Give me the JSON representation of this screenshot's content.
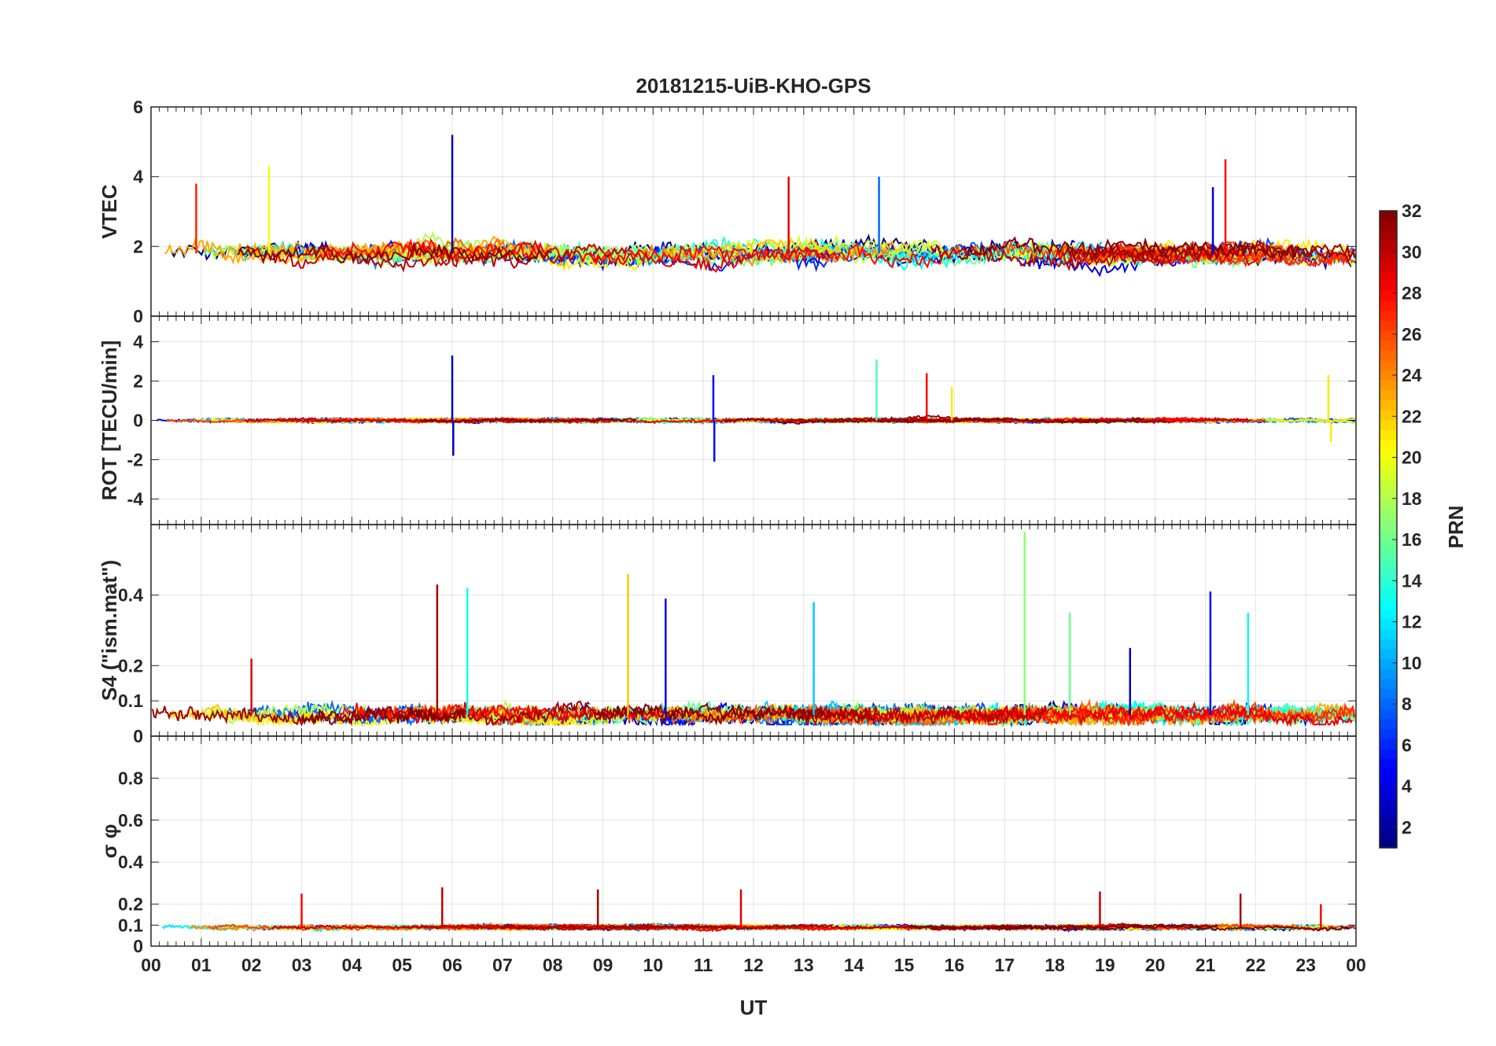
{
  "chart_data": {
    "type": "line",
    "title": "20181215-UiB-KHO-GPS",
    "xlabel": "UT",
    "x_tick_labels": [
      "00",
      "01",
      "02",
      "03",
      "04",
      "05",
      "06",
      "07",
      "08",
      "09",
      "10",
      "11",
      "12",
      "13",
      "14",
      "15",
      "16",
      "17",
      "18",
      "19",
      "20",
      "21",
      "22",
      "23",
      "00"
    ],
    "xlim": [
      0,
      24
    ],
    "grid": true,
    "panels": [
      {
        "id": "vtec",
        "ylabel": "VTEC",
        "ylim": [
          0,
          6
        ],
        "y_ticks": [
          0,
          2,
          4,
          6
        ],
        "y_tick_labels": [
          "0",
          "2",
          "4",
          "6"
        ],
        "baseline": 1.8,
        "noise": 0.35,
        "events": [
          {
            "prn": 3,
            "t": 6.0,
            "value": 5.2
          },
          {
            "prn": 4,
            "t": 21.15,
            "value": 3.7
          },
          {
            "prn": 28,
            "t": 21.4,
            "value": 4.5
          },
          {
            "prn": 29,
            "t": 12.7,
            "value": 4.0
          },
          {
            "prn": 8,
            "t": 14.5,
            "value": 4.0
          },
          {
            "prn": 20,
            "t": 2.35,
            "value": 4.3
          },
          {
            "prn": 27,
            "t": 0.9,
            "value": 3.8
          }
        ]
      },
      {
        "id": "rot",
        "ylabel": "ROT [TECU/min]",
        "ylim": [
          -5.3,
          5.3
        ],
        "y_ticks": [
          -4,
          -2,
          0,
          2,
          4
        ],
        "y_tick_labels": [
          "-4",
          "-2",
          "0",
          "2",
          "4"
        ],
        "baseline": 0.0,
        "noise": 0.12,
        "events": [
          {
            "prn": 3,
            "t": 6.0,
            "value": 3.3
          },
          {
            "prn": 3,
            "t": 6.02,
            "value": -1.8
          },
          {
            "prn": 5,
            "t": 11.2,
            "value": 2.3
          },
          {
            "prn": 5,
            "t": 11.22,
            "value": -2.1
          },
          {
            "prn": 15,
            "t": 14.45,
            "value": 3.1
          },
          {
            "prn": 28,
            "t": 15.45,
            "value": 2.4
          },
          {
            "prn": 21,
            "t": 15.95,
            "value": 1.7
          },
          {
            "prn": 21,
            "t": 23.45,
            "value": 2.3
          },
          {
            "prn": 21,
            "t": 23.5,
            "value": -1.1
          }
        ]
      },
      {
        "id": "s4",
        "ylabel": "S4 (\"ism.mat\")",
        "ylim": [
          0,
          0.6
        ],
        "y_ticks": [
          0,
          0.1,
          0.2,
          0.4
        ],
        "y_tick_labels": [
          "0",
          "0.1",
          "0.2",
          "0.4"
        ],
        "baseline": 0.06,
        "noise": 0.03,
        "events": [
          {
            "prn": 31,
            "t": 5.7,
            "value": 0.43
          },
          {
            "prn": 13,
            "t": 6.3,
            "value": 0.42
          },
          {
            "prn": 22,
            "t": 9.5,
            "value": 0.46
          },
          {
            "prn": 4,
            "t": 10.25,
            "value": 0.39
          },
          {
            "prn": 11,
            "t": 13.2,
            "value": 0.38
          },
          {
            "prn": 17,
            "t": 17.4,
            "value": 0.58
          },
          {
            "prn": 16,
            "t": 18.3,
            "value": 0.35
          },
          {
            "prn": 5,
            "t": 21.1,
            "value": 0.41
          },
          {
            "prn": 13,
            "t": 21.85,
            "value": 0.35
          },
          {
            "prn": 29,
            "t": 2.0,
            "value": 0.22
          },
          {
            "prn": 3,
            "t": 19.5,
            "value": 0.25
          }
        ]
      },
      {
        "id": "sigma_phi",
        "ylabel": "σ φ",
        "ylim": [
          0,
          1.0
        ],
        "y_ticks": [
          0,
          0.1,
          0.2,
          0.4,
          0.6,
          0.8
        ],
        "y_tick_labels": [
          "0",
          "0.1",
          "0.2",
          "0.4",
          "0.6",
          "0.8"
        ],
        "baseline": 0.09,
        "noise": 0.012,
        "events": [
          {
            "prn": 30,
            "t": 5.8,
            "value": 0.28
          },
          {
            "prn": 28,
            "t": 3.0,
            "value": 0.25
          },
          {
            "prn": 31,
            "t": 8.9,
            "value": 0.27
          },
          {
            "prn": 29,
            "t": 11.75,
            "value": 0.27
          },
          {
            "prn": 30,
            "t": 18.9,
            "value": 0.26
          },
          {
            "prn": 31,
            "t": 21.7,
            "value": 0.25
          },
          {
            "prn": 28,
            "t": 23.3,
            "value": 0.2
          }
        ]
      }
    ],
    "colorbar": {
      "label": "PRN",
      "range": [
        1,
        32
      ],
      "ticks": [
        2,
        4,
        6,
        8,
        10,
        12,
        14,
        16,
        18,
        20,
        22,
        24,
        26,
        28,
        30,
        32
      ],
      "tick_labels": [
        "2",
        "4",
        "6",
        "8",
        "10",
        "12",
        "14",
        "16",
        "18",
        "20",
        "22",
        "24",
        "26",
        "28",
        "30",
        "32"
      ],
      "colormap": "jet"
    },
    "series_prns": [
      1,
      2,
      3,
      4,
      5,
      6,
      7,
      8,
      9,
      10,
      11,
      12,
      13,
      14,
      15,
      16,
      17,
      18,
      19,
      20,
      21,
      22,
      23,
      24,
      25,
      26,
      27,
      28,
      29,
      30,
      31,
      32
    ]
  }
}
